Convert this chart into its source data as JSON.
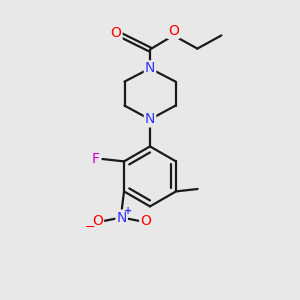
{
  "background_color": "#e8e8e8",
  "bond_color": "#1a1a1a",
  "atom_colors": {
    "N": "#3333ff",
    "O": "#ff0000",
    "F": "#cc00cc",
    "C": "#1a1a1a"
  },
  "figsize": [
    3.0,
    3.0
  ],
  "dpi": 100
}
